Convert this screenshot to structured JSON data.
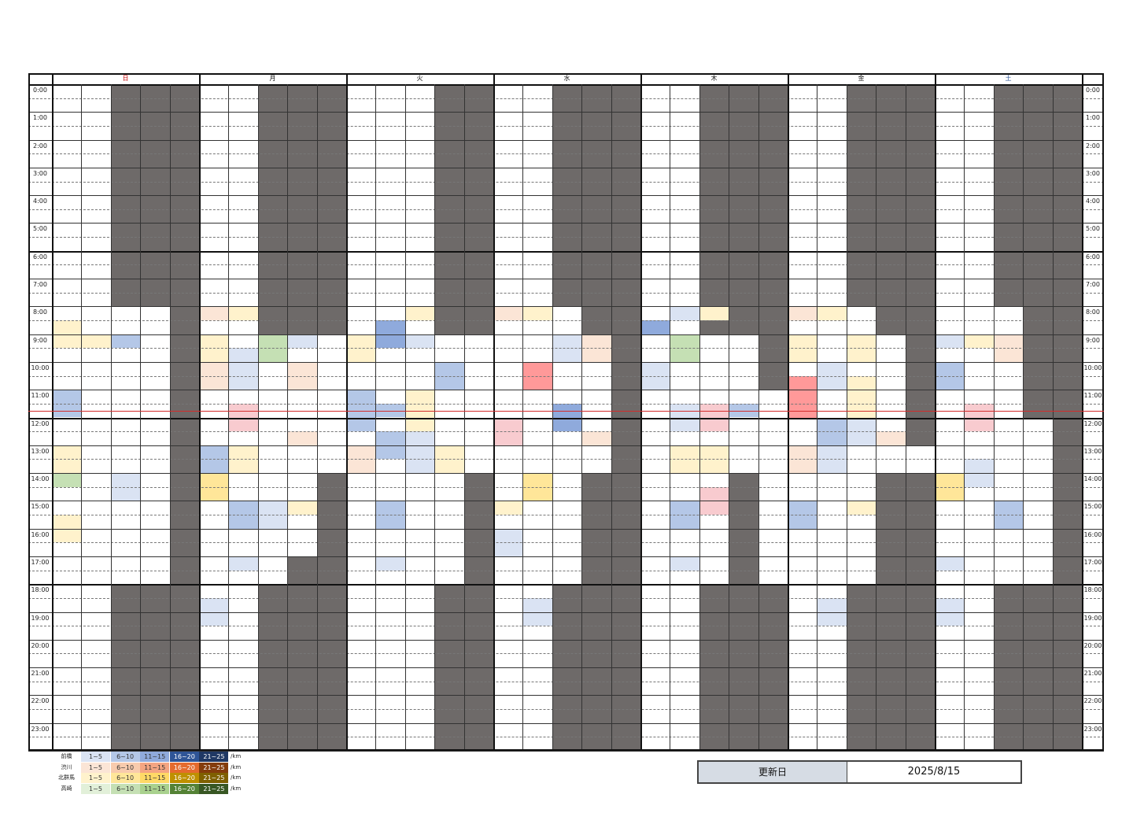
{
  "schedule": {
    "days": [
      {
        "label": "日",
        "color": "#c00000"
      },
      {
        "label": "月",
        "color": "#111111"
      },
      {
        "label": "火",
        "color": "#111111"
      },
      {
        "label": "水",
        "color": "#111111"
      },
      {
        "label": "木",
        "color": "#111111"
      },
      {
        "label": "金",
        "color": "#111111"
      },
      {
        "label": "土",
        "color": "#2f5597"
      }
    ],
    "hours": [
      "0:00",
      "1:00",
      "2:00",
      "3:00",
      "4:00",
      "5:00",
      "6:00",
      "7:00",
      "8:00",
      "9:00",
      "10:00",
      "11:00",
      "12:00",
      "13:00",
      "14:00",
      "15:00",
      "16:00",
      "17:00",
      "18:00",
      "19:00",
      "20:00",
      "21:00",
      "22:00",
      "23:00"
    ],
    "slots_per_hour": 2,
    "columns_per_day": 5,
    "current_time_marker_hour": 12,
    "unavailable": [
      {
        "day": 0,
        "col": 2,
        "from": 0,
        "to": 16
      },
      {
        "day": 0,
        "col": 3,
        "from": 0,
        "to": 16
      },
      {
        "day": 0,
        "col": 4,
        "from": 0,
        "to": 48
      },
      {
        "day": 0,
        "col": 2,
        "from": 36,
        "to": 48
      },
      {
        "day": 0,
        "col": 3,
        "from": 36,
        "to": 48
      },
      {
        "day": 1,
        "col": 2,
        "from": 0,
        "to": 18
      },
      {
        "day": 1,
        "col": 3,
        "from": 0,
        "to": 18
      },
      {
        "day": 1,
        "col": 4,
        "from": 0,
        "to": 18
      },
      {
        "day": 1,
        "col": 4,
        "from": 28,
        "to": 48
      },
      {
        "day": 1,
        "col": 3,
        "from": 34,
        "to": 48
      },
      {
        "day": 1,
        "col": 2,
        "from": 36,
        "to": 48
      },
      {
        "day": 2,
        "col": 3,
        "from": 0,
        "to": 18
      },
      {
        "day": 2,
        "col": 4,
        "from": 0,
        "to": 18
      },
      {
        "day": 2,
        "col": 4,
        "from": 28,
        "to": 48
      },
      {
        "day": 2,
        "col": 3,
        "from": 36,
        "to": 48
      },
      {
        "day": 3,
        "col": 2,
        "from": 0,
        "to": 16
      },
      {
        "day": 3,
        "col": 3,
        "from": 0,
        "to": 18
      },
      {
        "day": 3,
        "col": 4,
        "from": 0,
        "to": 48
      },
      {
        "day": 3,
        "col": 3,
        "from": 28,
        "to": 48
      },
      {
        "day": 3,
        "col": 2,
        "from": 36,
        "to": 48
      },
      {
        "day": 4,
        "col": 2,
        "from": 0,
        "to": 18
      },
      {
        "day": 4,
        "col": 3,
        "from": 0,
        "to": 18
      },
      {
        "day": 4,
        "col": 4,
        "from": 0,
        "to": 22
      },
      {
        "day": 4,
        "col": 3,
        "from": 28,
        "to": 48
      },
      {
        "day": 4,
        "col": 2,
        "from": 36,
        "to": 48
      },
      {
        "day": 4,
        "col": 4,
        "from": 36,
        "to": 48
      },
      {
        "day": 5,
        "col": 2,
        "from": 0,
        "to": 16
      },
      {
        "day": 5,
        "col": 3,
        "from": 0,
        "to": 18
      },
      {
        "day": 5,
        "col": 4,
        "from": 0,
        "to": 26
      },
      {
        "day": 5,
        "col": 3,
        "from": 28,
        "to": 48
      },
      {
        "day": 5,
        "col": 4,
        "from": 28,
        "to": 48
      },
      {
        "day": 5,
        "col": 2,
        "from": 36,
        "to": 48
      },
      {
        "day": 6,
        "col": 2,
        "from": 0,
        "to": 16
      },
      {
        "day": 6,
        "col": 3,
        "from": 0,
        "to": 24
      },
      {
        "day": 6,
        "col": 4,
        "from": 0,
        "to": 48
      },
      {
        "day": 6,
        "col": 3,
        "from": 36,
        "to": 48
      },
      {
        "day": 6,
        "col": 2,
        "from": 36,
        "to": 48
      }
    ],
    "bookings": [
      {
        "day": 0,
        "col": 0,
        "from": 17,
        "to": 19,
        "color": "#fff2cc"
      },
      {
        "day": 0,
        "col": 1,
        "from": 18,
        "to": 19,
        "color": "#fff2cc"
      },
      {
        "day": 0,
        "col": 2,
        "from": 18,
        "to": 19,
        "color": "#b4c7e7"
      },
      {
        "day": 0,
        "col": 0,
        "from": 22,
        "to": 24,
        "color": "#b4c7e7"
      },
      {
        "day": 0,
        "col": 0,
        "from": 26,
        "to": 28,
        "color": "#fff2cc"
      },
      {
        "day": 0,
        "col": 0,
        "from": 28,
        "to": 29,
        "color": "#c5e0b4"
      },
      {
        "day": 0,
        "col": 2,
        "from": 28,
        "to": 30,
        "color": "#dae3f3"
      },
      {
        "day": 0,
        "col": 0,
        "from": 31,
        "to": 33,
        "color": "#fff2cc"
      },
      {
        "day": 1,
        "col": 0,
        "from": 16,
        "to": 17,
        "color": "#fbe5d6"
      },
      {
        "day": 1,
        "col": 1,
        "from": 16,
        "to": 17,
        "color": "#fff2cc"
      },
      {
        "day": 1,
        "col": 0,
        "from": 18,
        "to": 20,
        "color": "#fff2cc"
      },
      {
        "day": 1,
        "col": 2,
        "from": 18,
        "to": 20,
        "color": "#c5e0b4"
      },
      {
        "day": 1,
        "col": 3,
        "from": 18,
        "to": 19,
        "color": "#dae3f3"
      },
      {
        "day": 1,
        "col": 1,
        "from": 19,
        "to": 22,
        "color": "#dae3f3"
      },
      {
        "day": 1,
        "col": 0,
        "from": 20,
        "to": 22,
        "color": "#fbe5d6"
      },
      {
        "day": 1,
        "col": 3,
        "from": 20,
        "to": 22,
        "color": "#fbe5d6"
      },
      {
        "day": 1,
        "col": 1,
        "from": 23,
        "to": 25,
        "color": "#f8cbcf"
      },
      {
        "day": 1,
        "col": 3,
        "from": 25,
        "to": 26,
        "color": "#fbe5d6"
      },
      {
        "day": 1,
        "col": 0,
        "from": 26,
        "to": 28,
        "color": "#b4c7e7"
      },
      {
        "day": 1,
        "col": 1,
        "from": 26,
        "to": 28,
        "color": "#fff2cc"
      },
      {
        "day": 1,
        "col": 0,
        "from": 28,
        "to": 30,
        "color": "#ffe699"
      },
      {
        "day": 1,
        "col": 1,
        "from": 30,
        "to": 32,
        "color": "#b4c7e7"
      },
      {
        "day": 1,
        "col": 2,
        "from": 30,
        "to": 32,
        "color": "#dae3f3"
      },
      {
        "day": 1,
        "col": 3,
        "from": 30,
        "to": 31,
        "color": "#fff2cc"
      },
      {
        "day": 1,
        "col": 1,
        "from": 34,
        "to": 35,
        "color": "#dae3f3"
      },
      {
        "day": 1,
        "col": 0,
        "from": 37,
        "to": 39,
        "color": "#dae3f3"
      },
      {
        "day": 2,
        "col": 2,
        "from": 16,
        "to": 17,
        "color": "#fff2cc"
      },
      {
        "day": 2,
        "col": 1,
        "from": 17,
        "to": 19,
        "color": "#8faadc"
      },
      {
        "day": 2,
        "col": 0,
        "from": 18,
        "to": 20,
        "color": "#fff2cc"
      },
      {
        "day": 2,
        "col": 2,
        "from": 18,
        "to": 19,
        "color": "#dae3f3"
      },
      {
        "day": 2,
        "col": 3,
        "from": 20,
        "to": 22,
        "color": "#b4c7e7"
      },
      {
        "day": 2,
        "col": 0,
        "from": 22,
        "to": 25,
        "color": "#b4c7e7"
      },
      {
        "day": 2,
        "col": 1,
        "from": 23,
        "to": 24,
        "color": "#b4c7e7"
      },
      {
        "day": 2,
        "col": 2,
        "from": 22,
        "to": 25,
        "color": "#fff2cc"
      },
      {
        "day": 2,
        "col": 1,
        "from": 25,
        "to": 27,
        "color": "#b4c7e7"
      },
      {
        "day": 2,
        "col": 2,
        "from": 25,
        "to": 27,
        "color": "#dae3f3"
      },
      {
        "day": 2,
        "col": 2,
        "from": 27,
        "to": 28,
        "color": "#dae3f3"
      },
      {
        "day": 2,
        "col": 0,
        "from": 26,
        "to": 28,
        "color": "#fbe5d6"
      },
      {
        "day": 2,
        "col": 3,
        "from": 26,
        "to": 28,
        "color": "#fff2cc"
      },
      {
        "day": 2,
        "col": 1,
        "from": 30,
        "to": 32,
        "color": "#b4c7e7"
      },
      {
        "day": 2,
        "col": 1,
        "from": 34,
        "to": 35,
        "color": "#dae3f3"
      },
      {
        "day": 3,
        "col": 0,
        "from": 16,
        "to": 17,
        "color": "#fbe5d6"
      },
      {
        "day": 3,
        "col": 1,
        "from": 16,
        "to": 17,
        "color": "#fff2cc"
      },
      {
        "day": 3,
        "col": 2,
        "from": 18,
        "to": 20,
        "color": "#dae3f3"
      },
      {
        "day": 3,
        "col": 3,
        "from": 18,
        "to": 20,
        "color": "#fbe5d6"
      },
      {
        "day": 3,
        "col": 1,
        "from": 20,
        "to": 22,
        "color": "#ff9999"
      },
      {
        "day": 3,
        "col": 2,
        "from": 23,
        "to": 25,
        "color": "#8faadc"
      },
      {
        "day": 3,
        "col": 0,
        "from": 24,
        "to": 26,
        "color": "#f8cbcf"
      },
      {
        "day": 3,
        "col": 3,
        "from": 25,
        "to": 26,
        "color": "#fbe5d6"
      },
      {
        "day": 3,
        "col": 1,
        "from": 28,
        "to": 30,
        "color": "#ffe699"
      },
      {
        "day": 3,
        "col": 0,
        "from": 30,
        "to": 31,
        "color": "#fff2cc"
      },
      {
        "day": 3,
        "col": 0,
        "from": 32,
        "to": 34,
        "color": "#dae3f3"
      },
      {
        "day": 3,
        "col": 1,
        "from": 37,
        "to": 39,
        "color": "#dae3f3"
      },
      {
        "day": 4,
        "col": 1,
        "from": 16,
        "to": 17,
        "color": "#dae3f3"
      },
      {
        "day": 4,
        "col": 2,
        "from": 16,
        "to": 17,
        "color": "#fff2cc"
      },
      {
        "day": 4,
        "col": 0,
        "from": 17,
        "to": 18,
        "color": "#8faadc"
      },
      {
        "day": 4,
        "col": 1,
        "from": 18,
        "to": 20,
        "color": "#c5e0b4"
      },
      {
        "day": 4,
        "col": 0,
        "from": 20,
        "to": 22,
        "color": "#dae3f3"
      },
      {
        "day": 4,
        "col": 1,
        "from": 23,
        "to": 25,
        "color": "#dae3f3"
      },
      {
        "day": 4,
        "col": 2,
        "from": 23,
        "to": 25,
        "color": "#f8cbcf"
      },
      {
        "day": 4,
        "col": 3,
        "from": 23,
        "to": 24,
        "color": "#b4c7e7"
      },
      {
        "day": 4,
        "col": 1,
        "from": 26,
        "to": 28,
        "color": "#fff2cc"
      },
      {
        "day": 4,
        "col": 2,
        "from": 26,
        "to": 28,
        "color": "#fff2cc"
      },
      {
        "day": 4,
        "col": 2,
        "from": 29,
        "to": 31,
        "color": "#f8cbcf"
      },
      {
        "day": 4,
        "col": 1,
        "from": 30,
        "to": 32,
        "color": "#b4c7e7"
      },
      {
        "day": 4,
        "col": 1,
        "from": 34,
        "to": 35,
        "color": "#dae3f3"
      },
      {
        "day": 5,
        "col": 0,
        "from": 16,
        "to": 17,
        "color": "#fbe5d6"
      },
      {
        "day": 5,
        "col": 1,
        "from": 16,
        "to": 17,
        "color": "#fff2cc"
      },
      {
        "day": 5,
        "col": 0,
        "from": 18,
        "to": 20,
        "color": "#fff2cc"
      },
      {
        "day": 5,
        "col": 2,
        "from": 18,
        "to": 20,
        "color": "#fff2cc"
      },
      {
        "day": 5,
        "col": 1,
        "from": 20,
        "to": 22,
        "color": "#dae3f3"
      },
      {
        "day": 5,
        "col": 0,
        "from": 21,
        "to": 24,
        "color": "#ff9999"
      },
      {
        "day": 5,
        "col": 2,
        "from": 21,
        "to": 24,
        "color": "#fff2cc"
      },
      {
        "day": 5,
        "col": 1,
        "from": 24,
        "to": 26,
        "color": "#b4c7e7"
      },
      {
        "day": 5,
        "col": 2,
        "from": 24,
        "to": 26,
        "color": "#dae3f3"
      },
      {
        "day": 5,
        "col": 3,
        "from": 25,
        "to": 26,
        "color": "#fbe5d6"
      },
      {
        "day": 5,
        "col": 0,
        "from": 26,
        "to": 28,
        "color": "#fbe5d6"
      },
      {
        "day": 5,
        "col": 1,
        "from": 26,
        "to": 28,
        "color": "#dae3f3"
      },
      {
        "day": 5,
        "col": 0,
        "from": 30,
        "to": 32,
        "color": "#b4c7e7"
      },
      {
        "day": 5,
        "col": 2,
        "from": 30,
        "to": 31,
        "color": "#fff2cc"
      },
      {
        "day": 5,
        "col": 1,
        "from": 37,
        "to": 39,
        "color": "#dae3f3"
      },
      {
        "day": 6,
        "col": 0,
        "from": 18,
        "to": 19,
        "color": "#dae3f3"
      },
      {
        "day": 6,
        "col": 1,
        "from": 18,
        "to": 19,
        "color": "#fff2cc"
      },
      {
        "day": 6,
        "col": 2,
        "from": 18,
        "to": 20,
        "color": "#fbe5d6"
      },
      {
        "day": 6,
        "col": 0,
        "from": 20,
        "to": 22,
        "color": "#b4c7e7"
      },
      {
        "day": 6,
        "col": 1,
        "from": 23,
        "to": 25,
        "color": "#f8cbcf"
      },
      {
        "day": 6,
        "col": 1,
        "from": 27,
        "to": 29,
        "color": "#dae3f3"
      },
      {
        "day": 6,
        "col": 0,
        "from": 28,
        "to": 30,
        "color": "#ffe699"
      },
      {
        "day": 6,
        "col": 2,
        "from": 30,
        "to": 32,
        "color": "#b4c7e7"
      },
      {
        "day": 6,
        "col": 0,
        "from": 34,
        "to": 35,
        "color": "#dae3f3"
      },
      {
        "day": 6,
        "col": 0,
        "from": 37,
        "to": 39,
        "color": "#dae3f3"
      }
    ]
  },
  "legend": {
    "unit": "/km",
    "ranges": [
      "1~5",
      "6~10",
      "11~15",
      "16~20",
      "21~25"
    ],
    "rows": [
      {
        "name": "前橋",
        "colors": [
          "#dae3f3",
          "#b4c7e7",
          "#8faadc",
          "#2f5597",
          "#1f3864"
        ],
        "text": [
          "#333333",
          "#333333",
          "#333333",
          "#ffffff",
          "#ffffff"
        ]
      },
      {
        "name": "渋川",
        "colors": [
          "#fbe5d6",
          "#f8cbad",
          "#f4a582",
          "#e56b2e",
          "#843c0c"
        ],
        "text": [
          "#333333",
          "#333333",
          "#333333",
          "#ffffff",
          "#ffffff"
        ]
      },
      {
        "name": "北群馬",
        "colors": [
          "#fff2cc",
          "#ffe699",
          "#ffd966",
          "#bf9000",
          "#7f6000"
        ],
        "text": [
          "#333333",
          "#333333",
          "#333333",
          "#ffffff",
          "#ffffff"
        ]
      },
      {
        "name": "高崎",
        "colors": [
          "#e2f0d9",
          "#c5e0b4",
          "#a9d18e",
          "#548235",
          "#385723"
        ],
        "text": [
          "#333333",
          "#333333",
          "#333333",
          "#ffffff",
          "#ffffff"
        ]
      }
    ]
  },
  "update": {
    "label": "更新日",
    "value": "2025/8/15"
  }
}
